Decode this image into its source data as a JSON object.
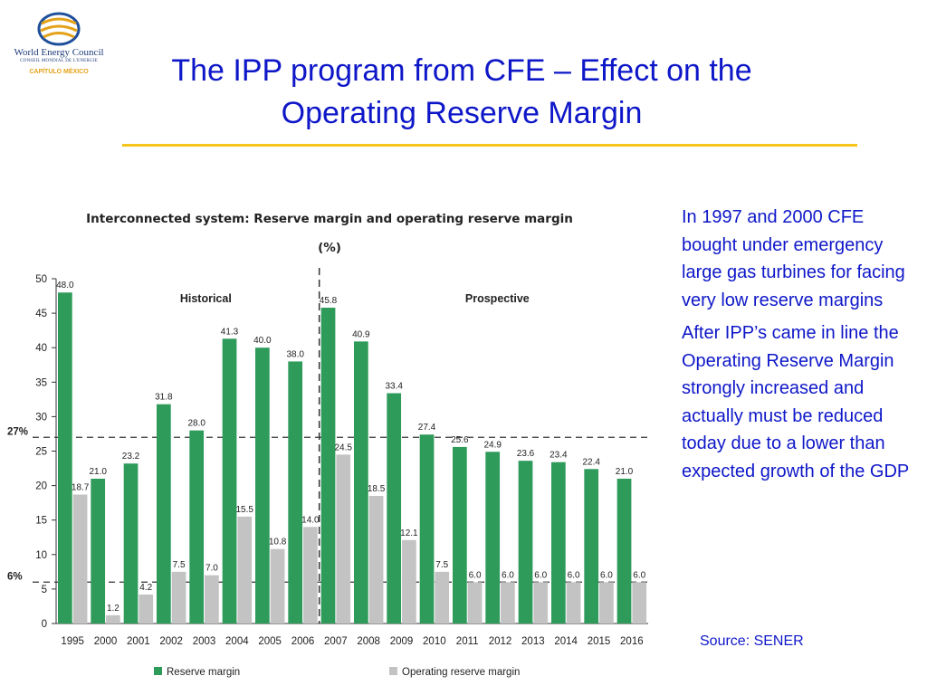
{
  "header": {
    "title": "The IPP program from CFE – Effect on the Operating Reserve Margin",
    "logo_name": "World Energy Council",
    "logo_subtitle": "CONSEIL MONDIAL DE L'ENERGIE",
    "logo_chapter": "CAPÍTULO MÉXICO"
  },
  "side": {
    "paragraph1": "In 1997 and 2000 CFE bought under emergency  large gas turbines for facing very low reserve margins",
    "paragraph2": "After IPP’s came in line the Operating Reserve Margin strongly increased and actually must be reduced today due to a lower than expected growth of the GDP",
    "source": "Source: SENER"
  },
  "colors": {
    "title": "#0e17c8",
    "rule": "#f5c518",
    "reserve": "#2e9b5b",
    "operating": "#c3c3c3"
  },
  "chart_data": {
    "type": "bar",
    "title": "Interconnected system: Reserve margin and operating reserve margin",
    "subtitle": "(%)",
    "categories": [
      "1995",
      "2000",
      "2001",
      "2002",
      "2003",
      "2004",
      "2005",
      "2006",
      "2007",
      "2008",
      "2009",
      "2010",
      "2011",
      "2012",
      "2013",
      "2014",
      "2015",
      "2016"
    ],
    "series": [
      {
        "name": "Reserve margin",
        "color": "#2e9b5b",
        "values": [
          48.0,
          21.0,
          23.2,
          31.8,
          28.0,
          41.3,
          40.0,
          38.0,
          45.8,
          40.9,
          33.4,
          27.4,
          25.6,
          24.9,
          23.6,
          23.4,
          22.4,
          21.0
        ]
      },
      {
        "name": "Operating reserve margin",
        "color": "#c3c3c3",
        "values": [
          18.7,
          1.2,
          4.2,
          7.5,
          7.0,
          15.5,
          10.8,
          14.0,
          24.5,
          18.5,
          12.1,
          7.5,
          6.0,
          6.0,
          6.0,
          6.0,
          6.0,
          6.0
        ]
      }
    ],
    "data_labels": {
      "Reserve margin": [
        "48.0",
        "21.0",
        "23.2",
        "31.8",
        "28.0",
        "41.3",
        "40.0",
        "38.0",
        "45.8",
        "40.9",
        "33.4",
        "27.4",
        "25.6",
        "24.9",
        "23.6",
        "23.4",
        "22.4",
        "21.0"
      ],
      "Operating reserve margin": [
        "18.7",
        "1.2",
        "4.2",
        "7.5",
        "7.0",
        "15.5",
        "10.8",
        "14.0",
        "24.5",
        "18.5",
        "12.1",
        "7.5",
        "6.0",
        "6.0",
        "6.0",
        "6.0",
        "6.0",
        "6.0"
      ]
    },
    "ylim": [
      0,
      50
    ],
    "yticks": [
      0,
      5,
      10,
      15,
      20,
      25,
      30,
      35,
      40,
      45,
      50
    ],
    "reference_lines": [
      {
        "value": 27,
        "label": "27%"
      },
      {
        "value": 6,
        "label": "6%"
      }
    ],
    "divider_after_category": "2006",
    "regions": [
      {
        "label": "Historical"
      },
      {
        "label": "Prospective"
      }
    ],
    "legend_position": "bottom",
    "grid": false
  }
}
